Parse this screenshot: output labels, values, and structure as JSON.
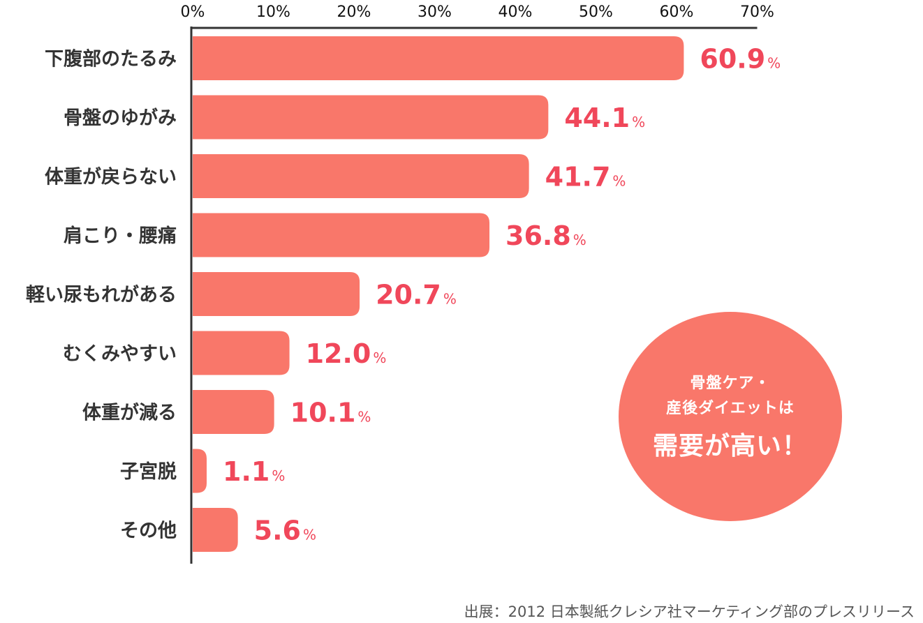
{
  "chart_data": {
    "type": "bar",
    "orientation": "horizontal",
    "categories": [
      "下腹部のたるみ",
      "骨盤のゆがみ",
      "体重が戻らない",
      "肩こり・腰痛",
      "軽い尿もれがある",
      "むくみやすい",
      "体重が減る",
      "子宮脱",
      "その他"
    ],
    "values": [
      60.9,
      44.1,
      41.7,
      36.8,
      20.7,
      12.0,
      10.1,
      1.1,
      5.6
    ],
    "value_labels": [
      "60.9",
      "44.1",
      "41.7",
      "36.8",
      "20.7",
      "12.0",
      "10.1",
      "1.1",
      "5.6"
    ],
    "value_unit": "%",
    "x_ticks": [
      "0%",
      "10%",
      "20%",
      "30%",
      "40%",
      "50%",
      "60%",
      "70%"
    ],
    "xlim": [
      0,
      70
    ],
    "axis_position": "top",
    "grid": false,
    "colors": {
      "bar": "#f9776a",
      "value_text": "#f0475a",
      "axis": "#333333"
    }
  },
  "callout": {
    "line1": "骨盤ケア・",
    "line2": "産後ダイエットは",
    "line3": "需要が高い！",
    "color": "#f9776a"
  },
  "source": "出展：2012 日本製紙クレシア社マーケティング部のプレスリリース"
}
